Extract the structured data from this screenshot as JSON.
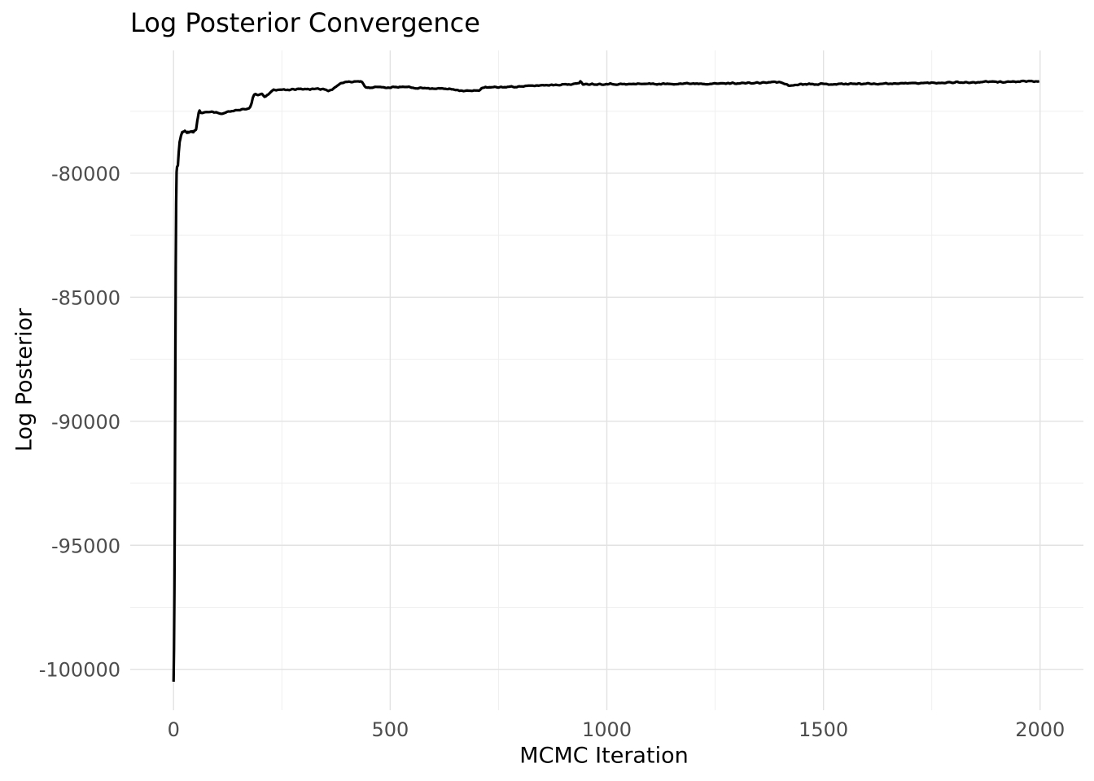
{
  "page": {
    "background": "#ffffff"
  },
  "chart": {
    "title": "Log Posterior Convergence",
    "xlabel": "MCMC Iteration",
    "ylabel": "Log Posterior"
  },
  "colors": {
    "line": "#000000",
    "grid_major": "#e2e2e2",
    "grid_minor": "#efefef",
    "tick_label": "#4d4d4d",
    "title": "#000000"
  },
  "chart_data": {
    "type": "line",
    "title": "Log Posterior Convergence",
    "xlabel": "MCMC Iteration",
    "ylabel": "Log Posterior",
    "grid": true,
    "legend": false,
    "xlim": [
      -100,
      2100
    ],
    "ylim": [
      -101650,
      -75050
    ],
    "x_major_ticks": [
      0,
      500,
      1000,
      1500,
      2000
    ],
    "x_tick_labels": [
      "0",
      "500",
      "1000",
      "1500",
      "2000"
    ],
    "x_minor_ticks": [
      250,
      750,
      1250,
      1750
    ],
    "y_major_ticks": [
      -80000,
      -85000,
      -90000,
      -95000,
      -100000
    ],
    "y_tick_labels": [
      "-80000",
      "-85000",
      "-90000",
      "-95000",
      "-100000"
    ],
    "y_minor_ticks": [
      -77500,
      -82500,
      -87500,
      -92500,
      -97500
    ],
    "x_start": 0,
    "x_end": 2000,
    "noise_amplitude": 30,
    "noise_start_x": 10,
    "noise_seed": 11,
    "series": [
      {
        "name": "log_posterior",
        "color": "#000000",
        "keypoints": [
          [
            0,
            -100500
          ],
          [
            1,
            -99200
          ],
          [
            2,
            -96800
          ],
          [
            3,
            -93200
          ],
          [
            4,
            -88600
          ],
          [
            5,
            -83800
          ],
          [
            6,
            -81200
          ],
          [
            7,
            -79950
          ],
          [
            8,
            -79750
          ],
          [
            10,
            -79680
          ],
          [
            12,
            -79150
          ],
          [
            14,
            -78750
          ],
          [
            17,
            -78480
          ],
          [
            20,
            -78340
          ],
          [
            26,
            -78310
          ],
          [
            32,
            -78360
          ],
          [
            38,
            -78330
          ],
          [
            45,
            -78330
          ],
          [
            52,
            -78240
          ],
          [
            55,
            -77850
          ],
          [
            58,
            -77580
          ],
          [
            60,
            -77470
          ],
          [
            63,
            -77560
          ],
          [
            75,
            -77540
          ],
          [
            90,
            -77520
          ],
          [
            105,
            -77570
          ],
          [
            113,
            -77630
          ],
          [
            122,
            -77540
          ],
          [
            135,
            -77490
          ],
          [
            150,
            -77440
          ],
          [
            165,
            -77410
          ],
          [
            176,
            -77400
          ],
          [
            180,
            -77200
          ],
          [
            184,
            -76880
          ],
          [
            188,
            -76800
          ],
          [
            196,
            -76850
          ],
          [
            204,
            -76820
          ],
          [
            211,
            -76910
          ],
          [
            218,
            -76850
          ],
          [
            224,
            -76740
          ],
          [
            230,
            -76640
          ],
          [
            242,
            -76640
          ],
          [
            255,
            -76620
          ],
          [
            268,
            -76640
          ],
          [
            285,
            -76610
          ],
          [
            305,
            -76600
          ],
          [
            325,
            -76615
          ],
          [
            345,
            -76600
          ],
          [
            357,
            -76660
          ],
          [
            367,
            -76620
          ],
          [
            376,
            -76490
          ],
          [
            386,
            -76380
          ],
          [
            396,
            -76320
          ],
          [
            410,
            -76305
          ],
          [
            426,
            -76295
          ],
          [
            434,
            -76315
          ],
          [
            441,
            -76490
          ],
          [
            447,
            -76545
          ],
          [
            470,
            -76530
          ],
          [
            500,
            -76545
          ],
          [
            530,
            -76520
          ],
          [
            560,
            -76560
          ],
          [
            592,
            -76575
          ],
          [
            620,
            -76590
          ],
          [
            646,
            -76615
          ],
          [
            666,
            -76670
          ],
          [
            691,
            -76685
          ],
          [
            706,
            -76650
          ],
          [
            713,
            -76550
          ],
          [
            735,
            -76540
          ],
          [
            765,
            -76525
          ],
          [
            795,
            -76505
          ],
          [
            825,
            -76480
          ],
          [
            855,
            -76450
          ],
          [
            885,
            -76430
          ],
          [
            915,
            -76415
          ],
          [
            936,
            -76385
          ],
          [
            940,
            -76255
          ],
          [
            944,
            -76400
          ],
          [
            972,
            -76410
          ],
          [
            1005,
            -76400
          ],
          [
            1045,
            -76415
          ],
          [
            1085,
            -76390
          ],
          [
            1125,
            -76405
          ],
          [
            1165,
            -76390
          ],
          [
            1205,
            -76380
          ],
          [
            1245,
            -76395
          ],
          [
            1285,
            -76370
          ],
          [
            1325,
            -76370
          ],
          [
            1362,
            -76350
          ],
          [
            1390,
            -76320
          ],
          [
            1406,
            -76345
          ],
          [
            1419,
            -76470
          ],
          [
            1433,
            -76450
          ],
          [
            1447,
            -76405
          ],
          [
            1478,
            -76400
          ],
          [
            1510,
            -76410
          ],
          [
            1550,
            -76400
          ],
          [
            1590,
            -76390
          ],
          [
            1630,
            -76390
          ],
          [
            1670,
            -76380
          ],
          [
            1710,
            -76370
          ],
          [
            1745,
            -76360
          ],
          [
            1775,
            -76350
          ],
          [
            1805,
            -76330
          ],
          [
            1835,
            -76345
          ],
          [
            1858,
            -76345
          ],
          [
            1863,
            -76310
          ],
          [
            1900,
            -76320
          ],
          [
            1940,
            -76310
          ],
          [
            1972,
            -76300
          ],
          [
            2000,
            -76295
          ]
        ]
      }
    ]
  }
}
